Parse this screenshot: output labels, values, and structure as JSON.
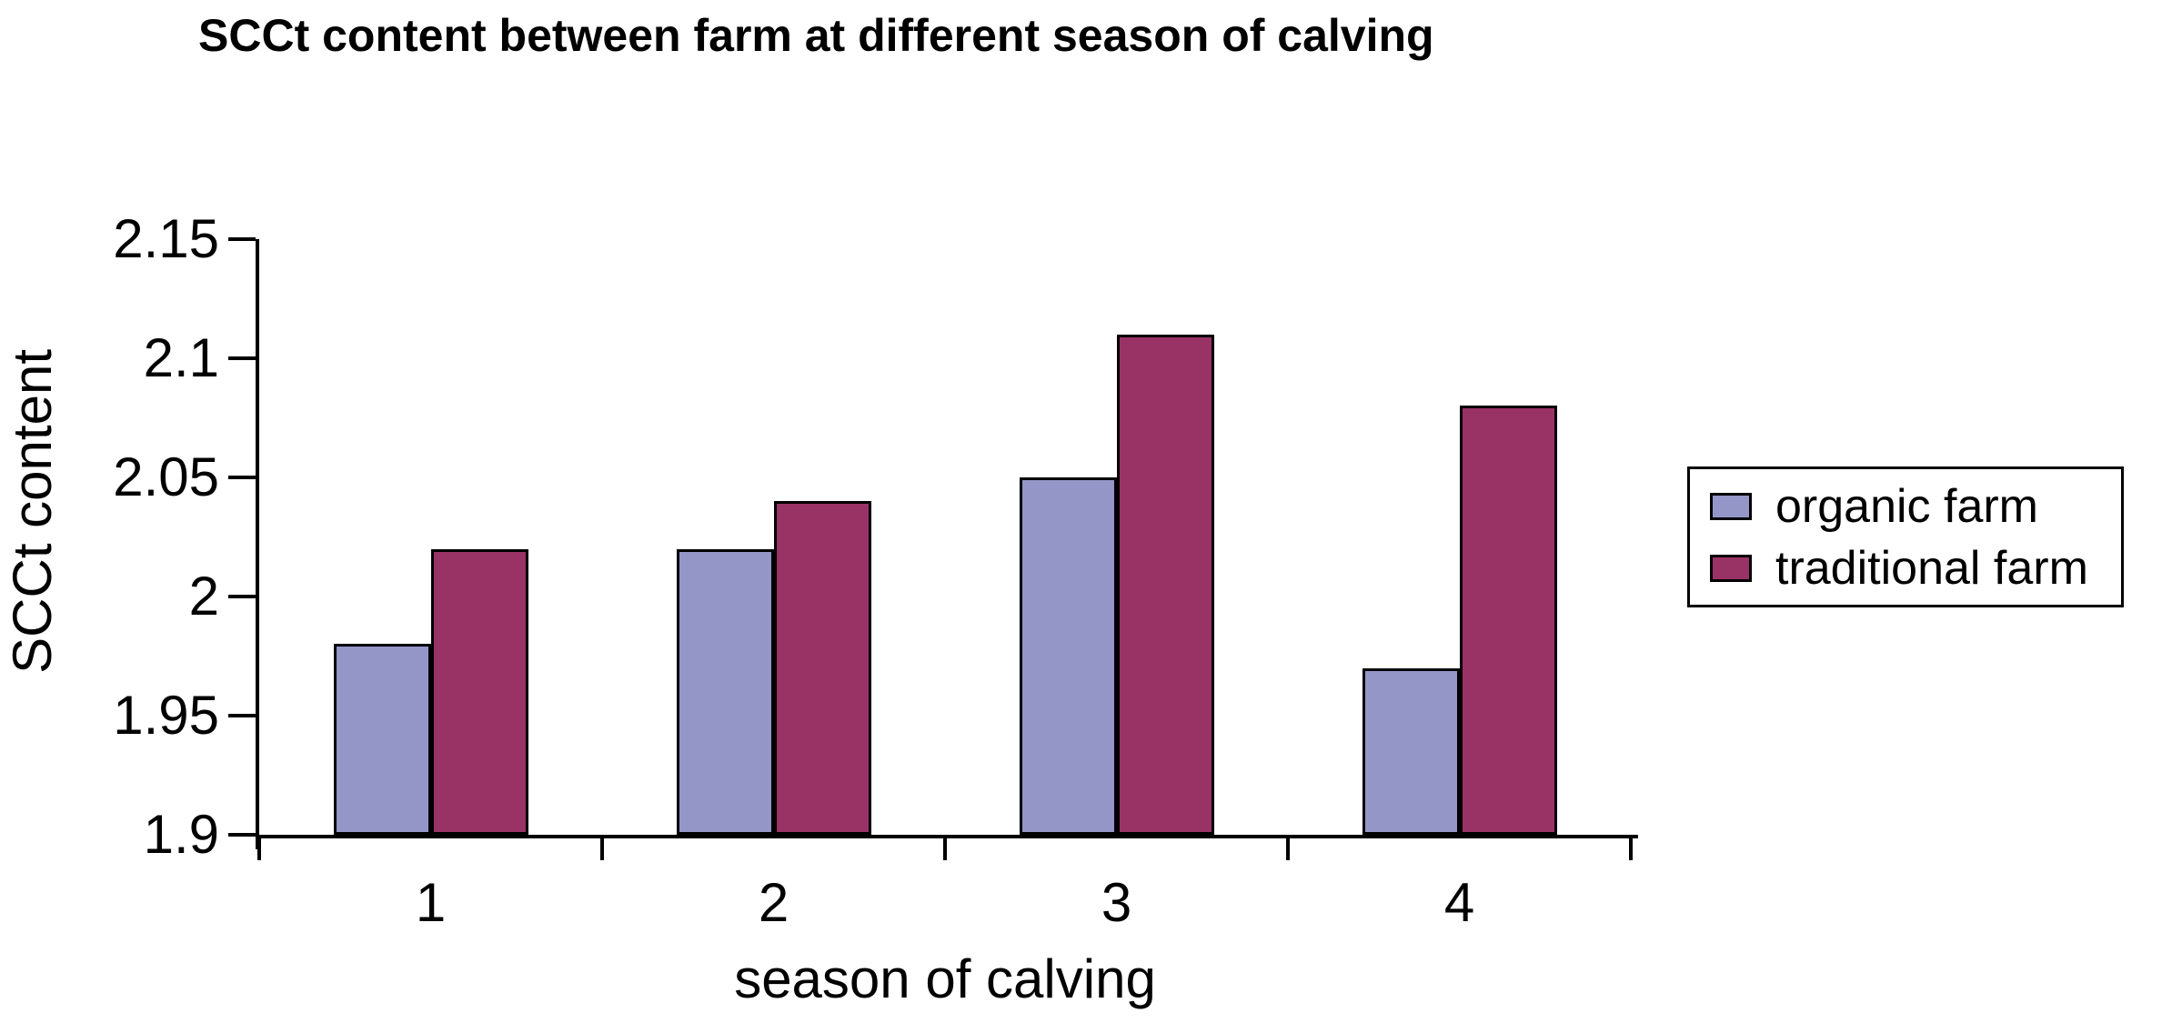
{
  "chart": {
    "title": "SCCt content between farm at different season of calving",
    "y_axis": {
      "title": "SCCt content",
      "tick_labels": [
        "2.15",
        "2.1",
        "2.05",
        "2",
        "1.95",
        "1.9"
      ]
    },
    "x_axis": {
      "title": "season of calving",
      "tick_labels": [
        "1",
        "2",
        "3",
        "4"
      ]
    },
    "legend": {
      "entries": [
        "organic farm",
        "traditional farm"
      ]
    }
  },
  "chart_data": {
    "type": "bar",
    "title": "SCCt content between farm at different season of calving",
    "xlabel": "season of calving",
    "ylabel": "SCCt content",
    "categories": [
      "1",
      "2",
      "3",
      "4"
    ],
    "series": [
      {
        "name": "organic farm",
        "color": "#9496c8",
        "values": [
          1.98,
          2.02,
          2.05,
          1.97
        ]
      },
      {
        "name": "traditional farm",
        "color": "#993366",
        "values": [
          2.02,
          2.04,
          2.11,
          2.08
        ]
      }
    ],
    "ylim": [
      1.9,
      2.15
    ],
    "ytick_step": 0.05,
    "grid": false,
    "legend_position": "right",
    "bar_border_color": "#000000",
    "background_color": "#ffffff"
  }
}
